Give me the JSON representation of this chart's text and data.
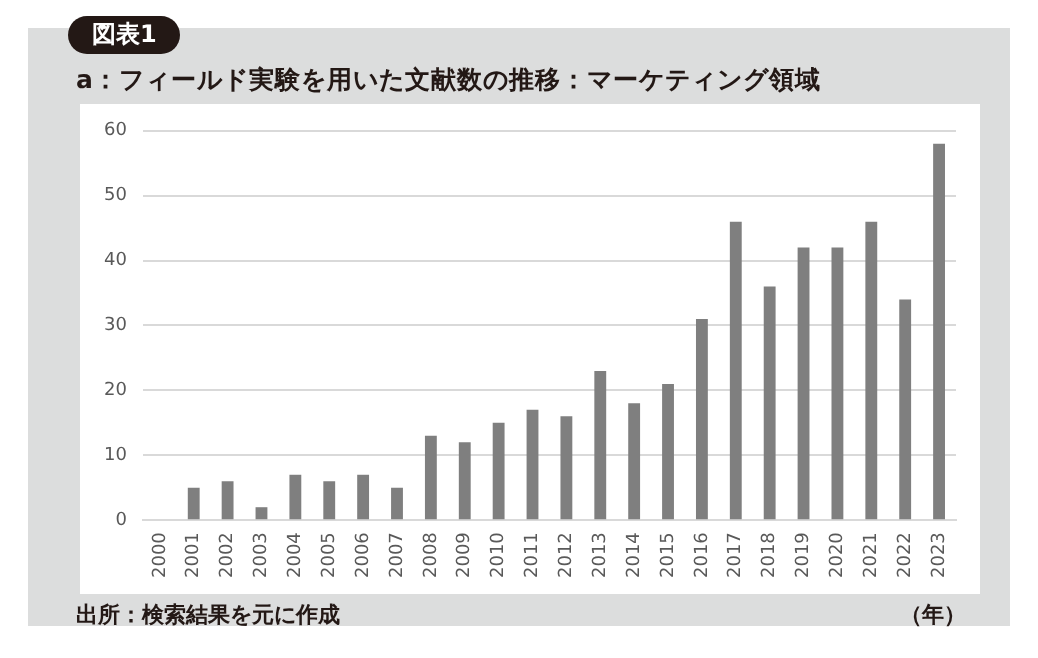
{
  "chart_data": {
    "type": "bar",
    "title": "図表1",
    "subtitle": "a：フィールド実験を用いた文献数の推移：マーケティング領域",
    "xlabel": "（年）",
    "annotations": [
      "出所：検索結果を元に作成"
    ],
    "categories": [
      "2000",
      "2001",
      "2002",
      "2003",
      "2004",
      "2005",
      "2006",
      "2007",
      "2008",
      "2009",
      "2010",
      "2011",
      "2012",
      "2013",
      "2014",
      "2015",
      "2016",
      "2017",
      "2018",
      "2019",
      "2020",
      "2021",
      "2022",
      "2023"
    ],
    "values": [
      0,
      5,
      6,
      2,
      7,
      6,
      7,
      5,
      13,
      12,
      15,
      17,
      16,
      23,
      18,
      21,
      31,
      46,
      36,
      42,
      42,
      46,
      34,
      58
    ],
    "color": "#7f7f7f",
    "ylim": [
      0,
      60
    ],
    "yticks": [
      0,
      10,
      20,
      30,
      40,
      50,
      60
    ],
    "grid": "y",
    "legend": false
  }
}
